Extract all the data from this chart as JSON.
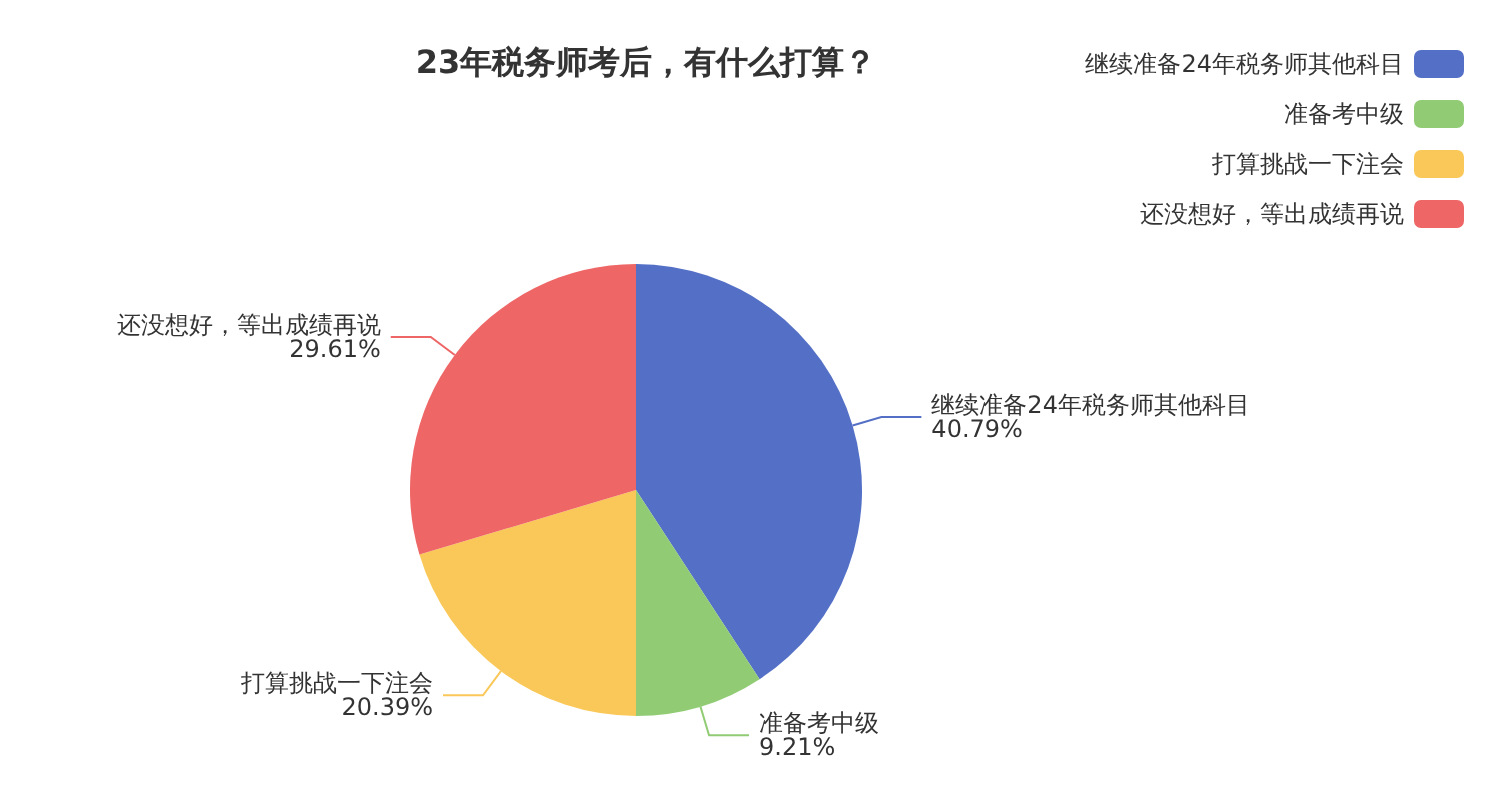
{
  "chart_data": {
    "type": "pie",
    "title": "23年税务师考后，有什么打算？",
    "categories": [
      "继续准备24年税务师其他科目",
      "准备考中级",
      "打算挑战一下注会",
      "还没想好，等出成绩再说"
    ],
    "values": [
      40.79,
      9.21,
      20.39,
      29.61
    ],
    "colors": [
      "#5470c6",
      "#91cc75",
      "#fac858",
      "#ee6666"
    ],
    "value_labels": [
      "40.79%",
      "9.21%",
      "20.39%",
      "29.61%"
    ],
    "legend": "top right"
  }
}
